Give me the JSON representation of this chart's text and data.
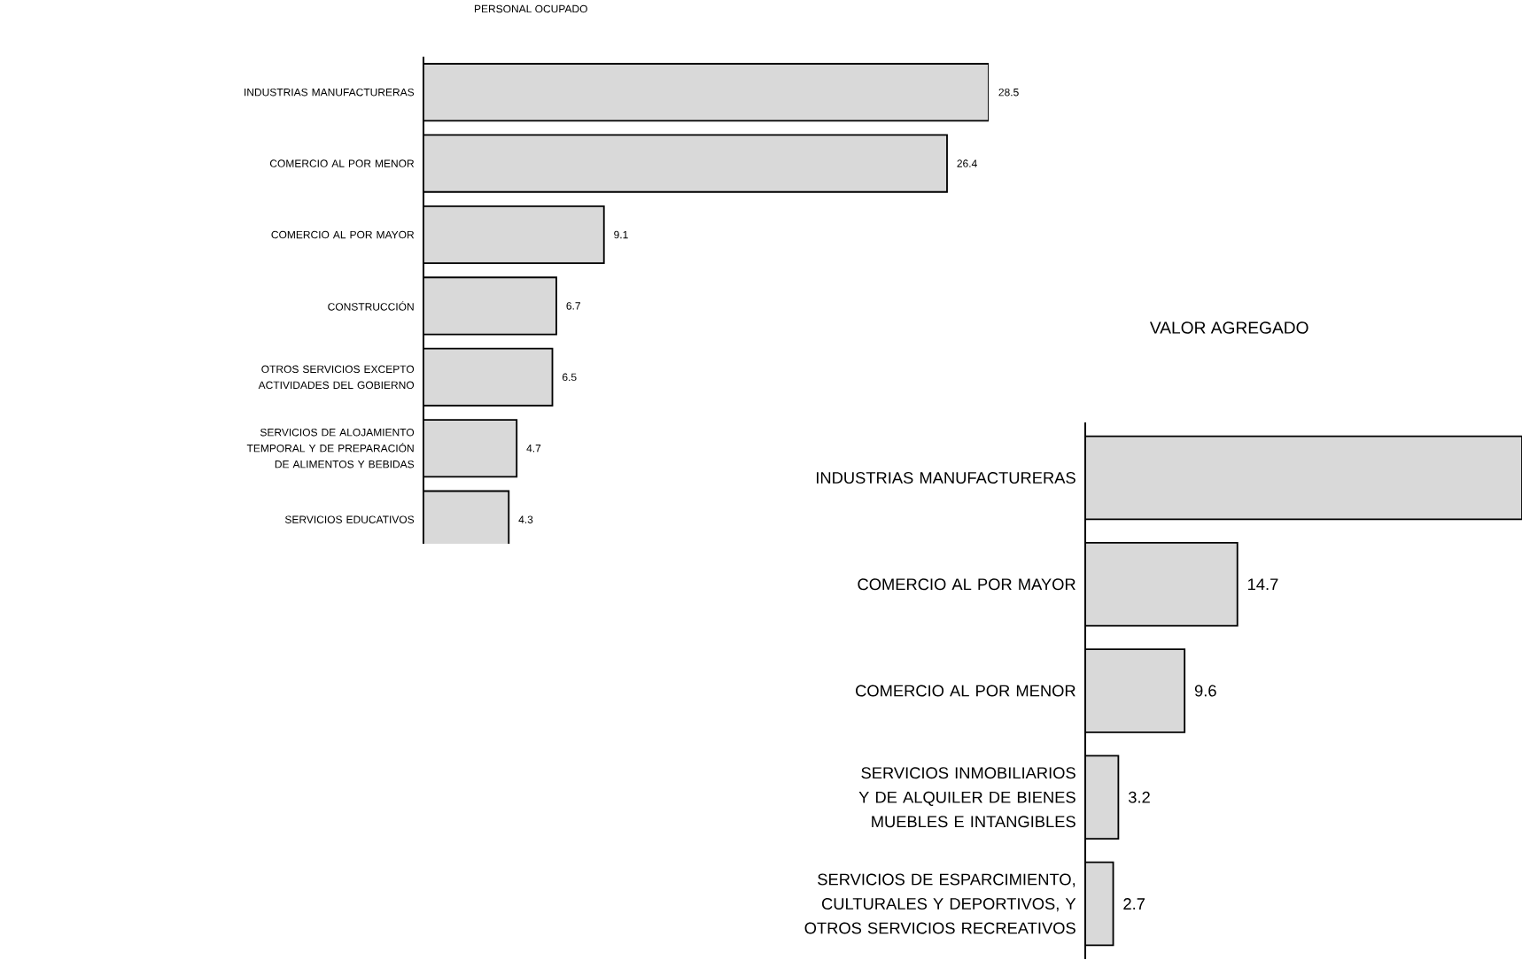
{
  "chart_data": [
    {
      "type": "bar",
      "orientation": "horizontal",
      "title": "PERSONAL OCUPADO",
      "tick_labels": "y",
      "categories": [
        "INDUSTRIAS MANUFACTURERAS",
        "COMERCIO AL POR MENOR",
        "COMERCIO AL POR MAYOR",
        "CONSTRUCCIÓN",
        "OTROS SERVICIOS EXCEPTO ACTIVIDADES DEL GOBIERNO",
        "SERVICIOS DE ALOJAMIENTO TEMPORAL Y DE PREPARACIÓN DE ALIMENTOS Y BEBIDAS",
        "SERVICIOS EDUCATIVOS"
      ],
      "values": [
        28.5,
        26.4,
        9.1,
        6.7,
        6.5,
        4.7,
        4.3
      ],
      "color": "#d9d9d9",
      "data_labels": true
    },
    {
      "type": "bar",
      "orientation": "horizontal",
      "title": "VALOR AGREGADO",
      "tick_labels": "y",
      "categories": [
        "INDUSTRIAS MANUFACTURERAS",
        "COMERCIO AL POR MAYOR",
        "COMERCIO AL POR MENOR",
        "SERVICIOS INMOBILIARIOS Y DE ALQUILER DE BIENES MUEBLES E INTANGIBLES",
        "SERVICIOS DE ESPARCIMIENTO, CULTURALES Y DEPORTIVOS, Y OTROS SERVICIOS RECREATIVOS"
      ],
      "values": [
        42.2,
        14.7,
        9.6,
        3.2,
        2.7
      ],
      "value_labels": [
        null,
        "14.7",
        "9.6",
        "3.2",
        "2.7"
      ],
      "color": "#d9d9d9"
    }
  ]
}
